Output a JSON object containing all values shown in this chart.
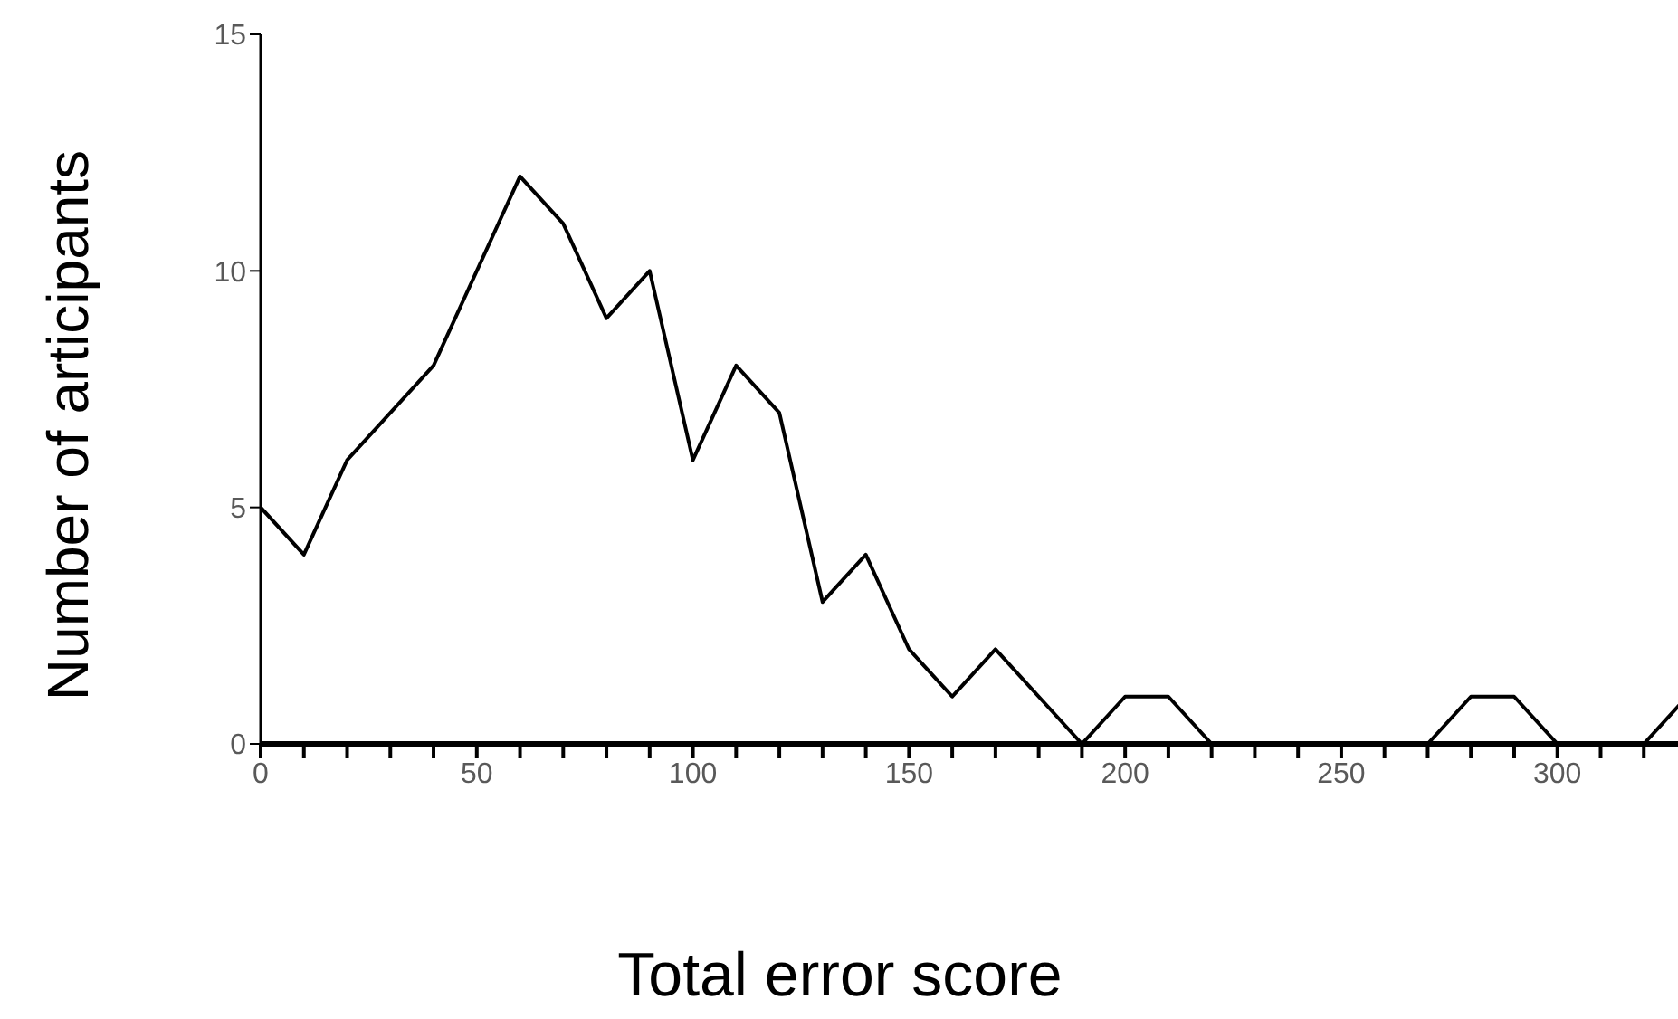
{
  "chart_data": {
    "type": "line",
    "xlabel": "Total error score",
    "ylabel": "Number of articipants",
    "x": [
      0,
      10,
      20,
      30,
      40,
      50,
      60,
      70,
      80,
      90,
      100,
      110,
      120,
      130,
      140,
      150,
      160,
      170,
      180,
      190,
      200,
      210,
      220,
      230,
      240,
      250,
      260,
      270,
      280,
      290,
      300,
      310,
      320,
      330
    ],
    "series": [
      {
        "color": "#000000",
        "values": [
          5,
          4,
          6,
          7,
          8,
          10,
          12,
          11,
          9,
          10,
          6,
          8,
          7,
          3,
          4,
          2,
          1,
          2,
          1,
          0,
          1,
          1,
          0,
          0,
          0,
          0,
          0,
          0,
          1,
          1,
          0,
          0,
          0,
          1
        ]
      }
    ],
    "xlim": [
      0,
      330
    ],
    "xticks": [
      0,
      {
        "value": 10,
        "label": null
      },
      {
        "value": 20,
        "label": null
      },
      {
        "value": 30,
        "label": null
      },
      {
        "value": 40,
        "label": null
      },
      50,
      {
        "value": 60,
        "label": null
      },
      {
        "value": 70,
        "label": null
      },
      {
        "value": 80,
        "label": null
      },
      {
        "value": 90,
        "label": null
      },
      100,
      {
        "value": 110,
        "label": null
      },
      {
        "value": 120,
        "label": null
      },
      {
        "value": 130,
        "label": null
      },
      {
        "value": 140,
        "label": null
      },
      150,
      {
        "value": 160,
        "label": null
      },
      {
        "value": 170,
        "label": null
      },
      {
        "value": 180,
        "label": null
      },
      {
        "value": 190,
        "label": null
      },
      200,
      {
        "value": 210,
        "label": null
      },
      {
        "value": 220,
        "label": null
      },
      {
        "value": 230,
        "label": null
      },
      {
        "value": 240,
        "label": null
      },
      250,
      {
        "value": 260,
        "label": null
      },
      {
        "value": 270,
        "label": null
      },
      {
        "value": 280,
        "label": null
      },
      {
        "value": 290,
        "label": null
      },
      300,
      {
        "value": 310,
        "label": null
      },
      {
        "value": 320,
        "label": null
      }
    ],
    "ylim": [
      0,
      15
    ],
    "yticks": [
      0,
      5,
      10,
      15
    ],
    "grid": false,
    "legend": false,
    "marker": "none",
    "line_style": "solid"
  }
}
